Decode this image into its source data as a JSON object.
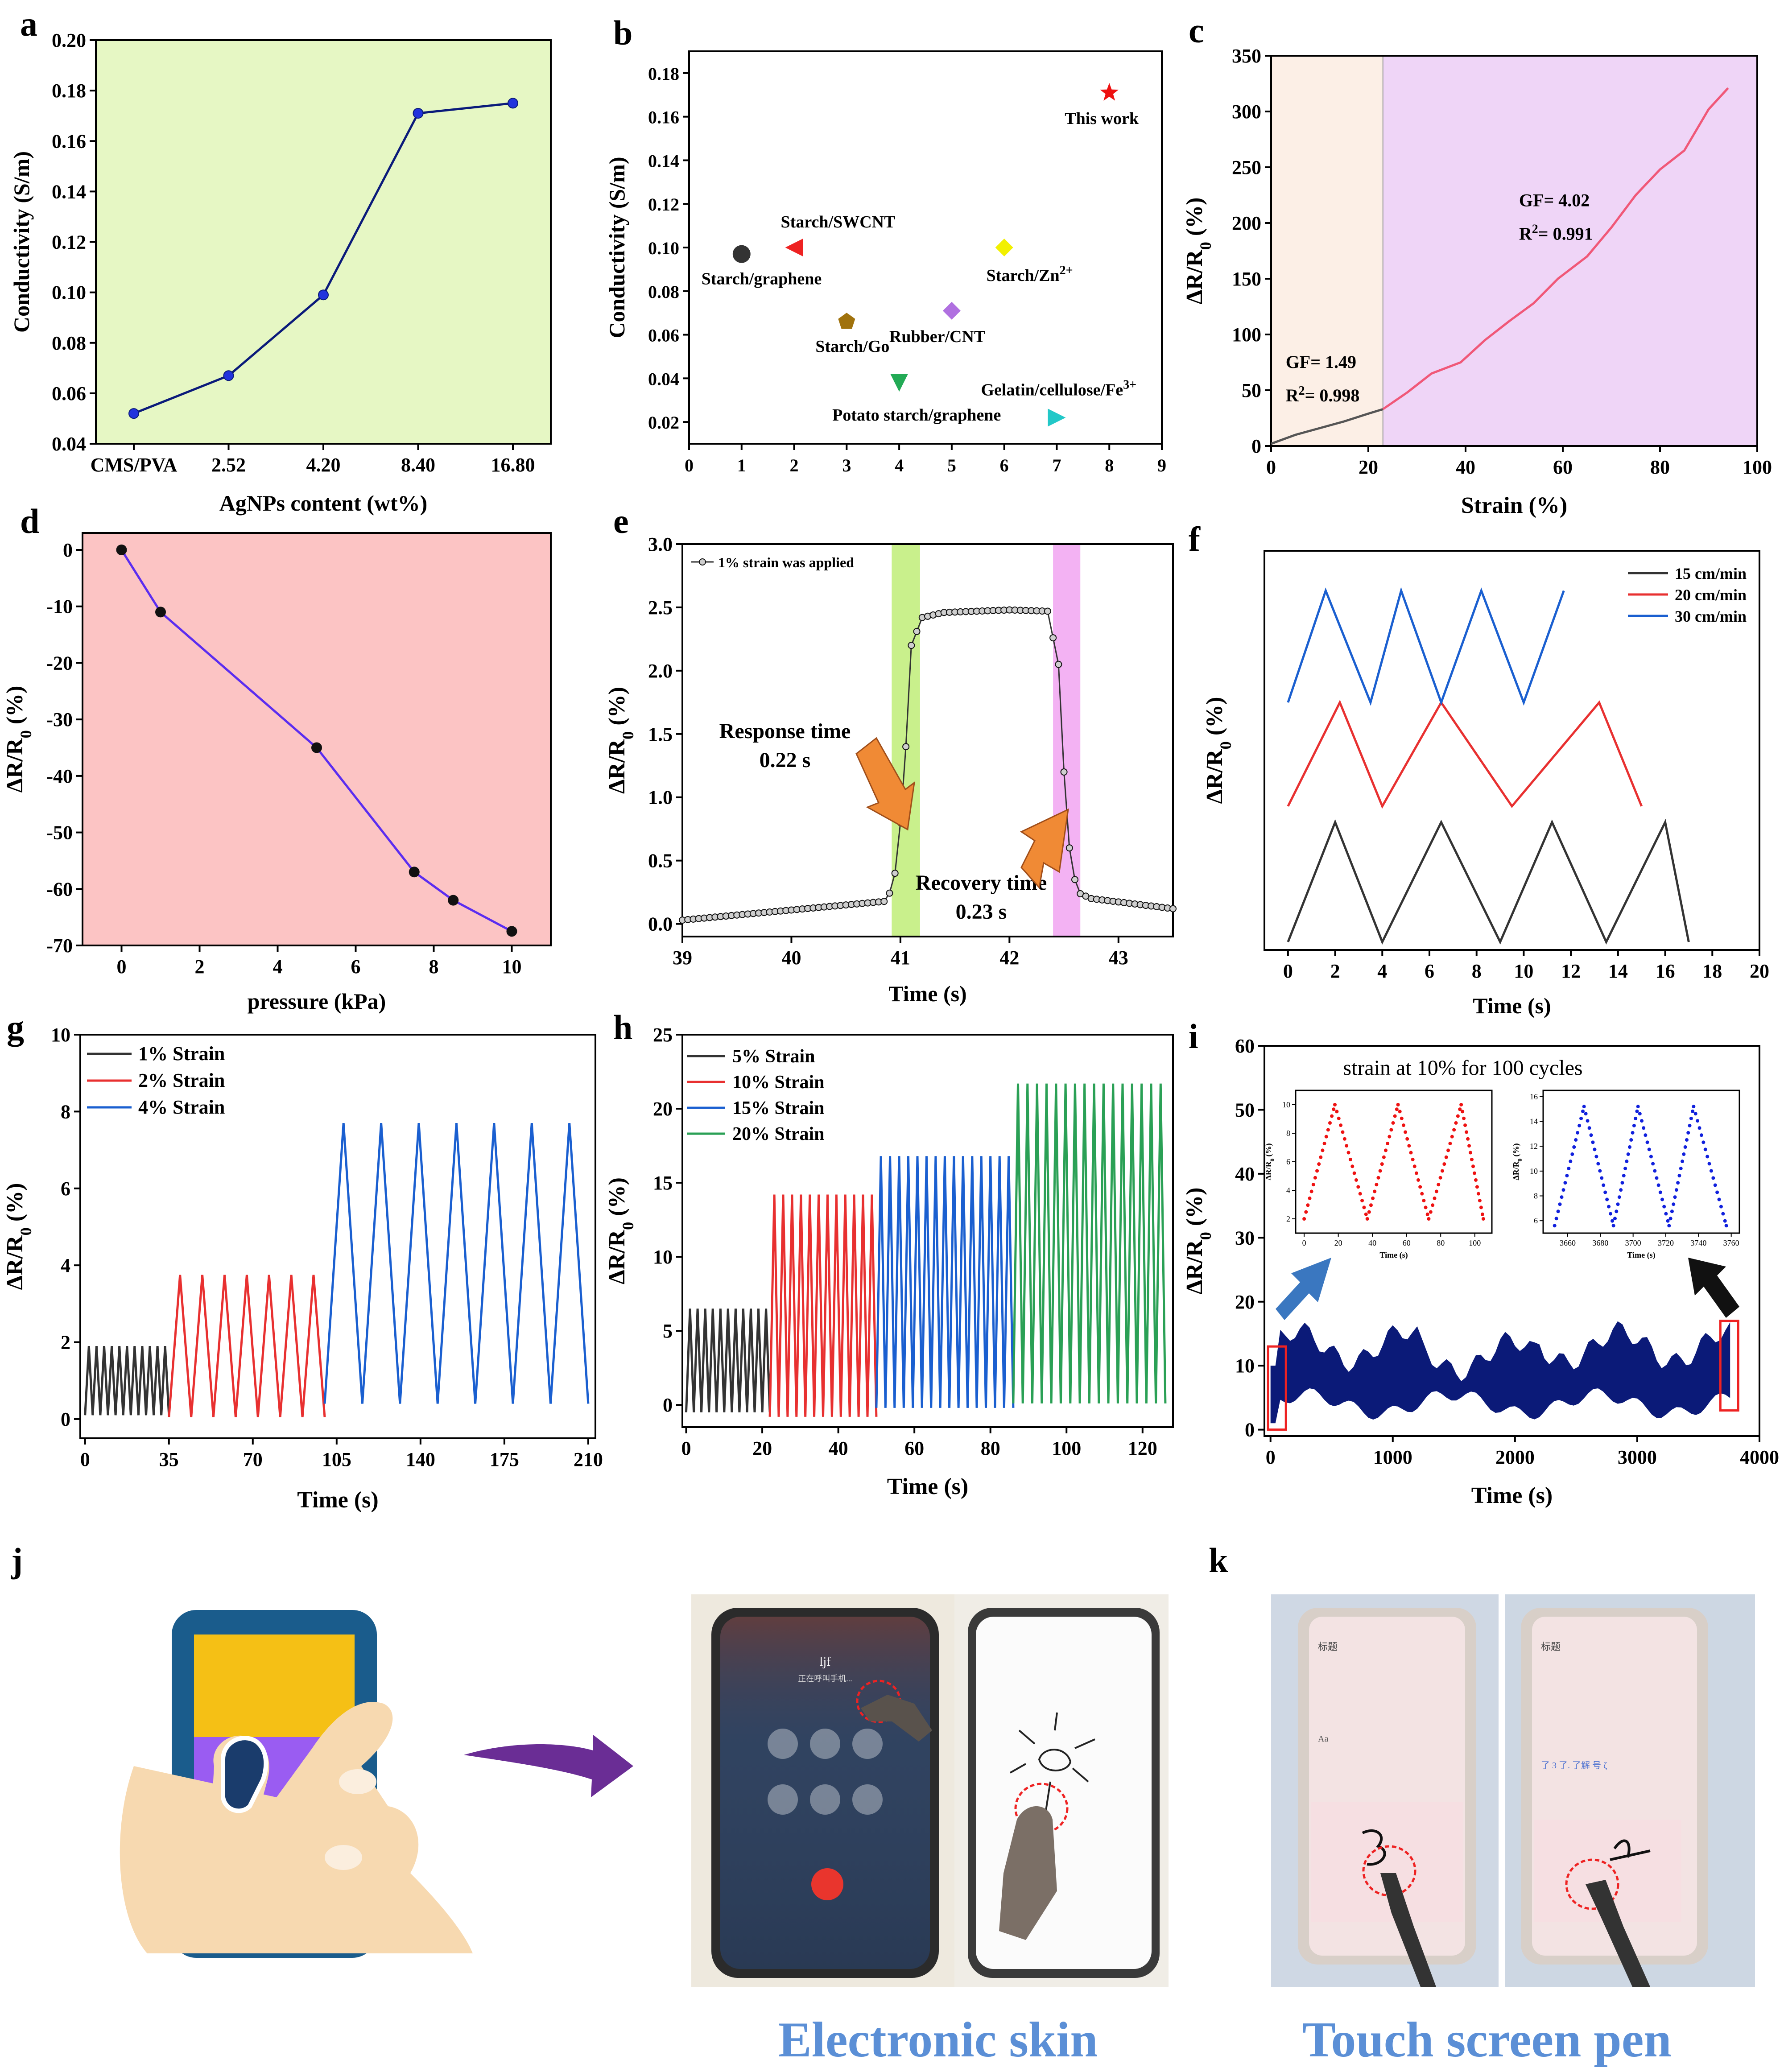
{
  "panels": {
    "a": {
      "letter": "a"
    },
    "b": {
      "letter": "b"
    },
    "c": {
      "letter": "c"
    },
    "d": {
      "letter": "d"
    },
    "e": {
      "letter": "e"
    },
    "f": {
      "letter": "f"
    },
    "g": {
      "letter": "g"
    },
    "h": {
      "letter": "h"
    },
    "i": {
      "letter": "i"
    },
    "j": {
      "letter": "j"
    },
    "k": {
      "letter": "k"
    }
  },
  "captions": {
    "electronic_skin": "Electronic skin",
    "touch_screen_pen": "Touch screen pen"
  },
  "phone_ui": {
    "call_name": "ljf",
    "call_status": "正在呼叫手机...",
    "memo_title": "标题",
    "memo_title_2": "标题",
    "keyboard_candidates_1": "Aa",
    "keyboard_candidates_2": "了  3  了.  了解  号  ζ"
  },
  "chart_data": [
    {
      "id": "a",
      "type": "line",
      "categories": [
        "CMS/PVA",
        "2.52",
        "4.20",
        "8.40",
        "16.80"
      ],
      "values": [
        0.052,
        0.067,
        0.099,
        0.171,
        0.175
      ],
      "xlabel": "AgNPs content (wt%)",
      "ylabel": "Conductivity (S/m)",
      "ylim": [
        0.04,
        0.2
      ],
      "yticks": [
        "0.04",
        "0.06",
        "0.08",
        "0.10",
        "0.12",
        "0.14",
        "0.16",
        "0.18",
        "0.20"
      ],
      "background": "#e6f7c4",
      "line_color": "#0a1a7a",
      "marker_color": "#2233dd"
    },
    {
      "id": "b",
      "type": "scatter",
      "xlim": [
        0,
        9
      ],
      "ylim": [
        0.01,
        0.19
      ],
      "xticks": [
        "0",
        "1",
        "2",
        "3",
        "4",
        "5",
        "6",
        "7",
        "8",
        "9"
      ],
      "yticks": [
        "0.02",
        "0.04",
        "0.06",
        "0.08",
        "0.10",
        "0.12",
        "0.14",
        "0.16",
        "0.18"
      ],
      "ylabel": "Conductivity (S/m)",
      "points": [
        {
          "x": 1,
          "y": 0.097,
          "label": "Starch/graphene",
          "marker": "sphere",
          "color": "#333333"
        },
        {
          "x": 2,
          "y": 0.1,
          "label": "Starch/SWCNT",
          "marker": "triangle-left",
          "color": "#ee2222"
        },
        {
          "x": 3,
          "y": 0.066,
          "label": "Starch/Go",
          "marker": "pentagon",
          "color": "#a0720d"
        },
        {
          "x": 4,
          "y": 0.038,
          "label": "Potato starch/graphene",
          "marker": "triangle-down",
          "color": "#22aa55"
        },
        {
          "x": 5,
          "y": 0.071,
          "label": "Rubber/CNT",
          "marker": "diamond",
          "color": "#b070e0"
        },
        {
          "x": 6,
          "y": 0.1,
          "label": "Starch/Zn",
          "label_sup": "2+",
          "marker": "diamond",
          "color": "#f2f000"
        },
        {
          "x": 7,
          "y": 0.022,
          "label": "Gelatin/cellulose/Fe",
          "label_sup": "3+",
          "marker": "triangle-right",
          "color": "#22c8c8"
        },
        {
          "x": 8,
          "y": 0.171,
          "label": "This work",
          "marker": "star",
          "color": "#ee1111"
        }
      ]
    },
    {
      "id": "c",
      "type": "line",
      "x": [
        0,
        5,
        10,
        15,
        20,
        23,
        28,
        33,
        39,
        44,
        49,
        54,
        59,
        65,
        70,
        75,
        80,
        85,
        90,
        94
      ],
      "y": [
        2,
        10,
        16,
        22,
        29,
        33,
        48,
        65,
        75,
        95,
        112,
        128,
        150,
        170,
        196,
        225,
        248,
        265,
        302,
        321
      ],
      "xlim": [
        0,
        100
      ],
      "ylim": [
        0,
        350
      ],
      "xticks": [
        "0",
        "20",
        "40",
        "60",
        "80",
        "100"
      ],
      "yticks": [
        "0",
        "50",
        "100",
        "150",
        "200",
        "250",
        "300",
        "350"
      ],
      "xlabel": "Strain (%)",
      "ylabel": "ΔR/R0 (%)",
      "regions": [
        {
          "from": 0,
          "to": 23,
          "color": "#fcefe6"
        },
        {
          "from": 23,
          "to": 100,
          "color": "#efd5f7"
        }
      ],
      "annotations": [
        {
          "text": "GF= 1.49",
          "x": 3,
          "y": 70
        },
        {
          "text": "R",
          "sup": "2",
          "rest": "= 0.998",
          "x": 3,
          "y": 40
        },
        {
          "text": "GF= 4.02",
          "x": 51,
          "y": 215
        },
        {
          "text": "R",
          "sup": "2",
          "rest": "= 0.991",
          "x": 51,
          "y": 185
        }
      ],
      "colors": {
        "low": "#555555",
        "high": "#f05878"
      }
    },
    {
      "id": "d",
      "type": "line",
      "x": [
        0,
        1,
        5,
        7.5,
        8.5,
        10
      ],
      "y": [
        0,
        -11,
        -35,
        -57,
        -62,
        -67.5
      ],
      "xlim": [
        -1,
        11
      ],
      "ylim": [
        -70,
        3
      ],
      "xticks": [
        "0",
        "2",
        "4",
        "6",
        "8",
        "10"
      ],
      "yticks": [
        "0",
        "-10",
        "-20",
        "-30",
        "-40",
        "-50",
        "-60",
        "-70"
      ],
      "xlabel": "pressure (kPa)",
      "ylabel": "ΔR/R0 (%)",
      "background": "#fcc4c4",
      "line_color": "#5b2df0"
    },
    {
      "id": "e",
      "type": "line",
      "xlim": [
        39,
        43.5
      ],
      "ylim": [
        -0.1,
        3.0
      ],
      "xticks": [
        "39",
        "40",
        "41",
        "42",
        "43"
      ],
      "yticks": [
        "0.0",
        "0.5",
        "1.0",
        "1.5",
        "2.0",
        "2.5",
        "3.0"
      ],
      "xlabel": "Time (s)",
      "ylabel": "ΔR/R0 (%)",
      "legend": "1% strain was applied",
      "shade_response": [
        40.92,
        41.18
      ],
      "shade_recovery": [
        42.4,
        42.65
      ],
      "shade_colors": {
        "response": "#c9f08c",
        "recovery": "#f3b2f3"
      },
      "key_points": [
        [
          39,
          0.03
        ],
        [
          40.88,
          0.18
        ],
        [
          40.95,
          0.4
        ],
        [
          41.0,
          0.8
        ],
        [
          41.05,
          1.4
        ],
        [
          41.1,
          2.2
        ],
        [
          41.2,
          2.42
        ],
        [
          41.4,
          2.46
        ],
        [
          42.0,
          2.48
        ],
        [
          42.35,
          2.47
        ],
        [
          42.45,
          2.05
        ],
        [
          42.5,
          1.2
        ],
        [
          42.55,
          0.6
        ],
        [
          42.62,
          0.25
        ],
        [
          42.75,
          0.2
        ],
        [
          43.5,
          0.12
        ]
      ],
      "annotations": {
        "response": "Response time",
        "response_value": "0.22 s",
        "recovery": "Recovery time",
        "recovery_value": "0.23 s"
      }
    },
    {
      "id": "f",
      "type": "line",
      "xlim": [
        -1,
        20
      ],
      "xticks": [
        "0",
        "2",
        "4",
        "6",
        "8",
        "10",
        "12",
        "14",
        "16",
        "18",
        "20"
      ],
      "xlabel": "Time (s)",
      "ylabel": "ΔR/R0 (%)",
      "series": [
        {
          "name": "15 cm/min",
          "color": "#333333",
          "x": [
            0,
            2,
            4,
            6.5,
            9,
            11.2,
            13.5,
            16,
            17
          ],
          "peaks_y": 0.32,
          "trough_y": 0.02
        },
        {
          "name": "20 cm/min",
          "color": "#e83030",
          "x": [
            0,
            2.2,
            4,
            6.5,
            9.5,
            13.2,
            15
          ],
          "peaks_y": 0.62,
          "trough_y": 0.36
        },
        {
          "name": "30 cm/min",
          "color": "#1a5fd0",
          "x": [
            0,
            1.6,
            3.5,
            4.8,
            6.5,
            8.2,
            10,
            11.7
          ],
          "peaks_y": 0.9,
          "trough_y": 0.62
        }
      ]
    },
    {
      "id": "g",
      "type": "line",
      "xlim": [
        -2,
        213
      ],
      "ylim": [
        -0.5,
        10
      ],
      "xticks": [
        "0",
        "35",
        "70",
        "105",
        "140",
        "175",
        "210"
      ],
      "yticks": [
        "0",
        "2",
        "4",
        "6",
        "8",
        "10"
      ],
      "xlabel": "Time (s)",
      "ylabel": "ΔR/R0 (%)",
      "series": [
        {
          "name": "1% Strain",
          "color": "#333333",
          "from": 0,
          "to": 35,
          "cycles": 11,
          "peak": 1.9,
          "base": 0.1
        },
        {
          "name": "2% Strain",
          "color": "#e83030",
          "from": 35,
          "to": 100,
          "cycles": 7,
          "peak": 3.75,
          "base": 0.05
        },
        {
          "name": "4% Strain",
          "color": "#1a5fd0",
          "from": 100,
          "to": 210,
          "cycles": 7,
          "peak": 7.7,
          "base": 0.4
        }
      ]
    },
    {
      "id": "h",
      "type": "line",
      "xlim": [
        -1,
        128
      ],
      "ylim": [
        -1.5,
        25
      ],
      "xticks": [
        "0",
        "20",
        "40",
        "60",
        "80",
        "100",
        "120"
      ],
      "yticks": [
        "0",
        "5",
        "10",
        "15",
        "20",
        "25"
      ],
      "xlabel": "Time (s)",
      "ylabel": "ΔR/R0 (%)",
      "series": [
        {
          "name": "5% Strain",
          "color": "#333333",
          "from": 0,
          "to": 22,
          "cycles": 11,
          "peak": 6.5,
          "base": -0.5
        },
        {
          "name": "10% Strain",
          "color": "#e83030",
          "from": 22,
          "to": 50,
          "cycles": 12,
          "peak": 14.2,
          "base": -0.8
        },
        {
          "name": "15% Strain",
          "color": "#1a5fd0",
          "from": 50,
          "to": 86,
          "cycles": 15,
          "peak": 16.8,
          "base": -0.2
        },
        {
          "name": "20% Strain",
          "color": "#2aa055",
          "from": 86,
          "to": 126,
          "cycles": 16,
          "peak": 21.7,
          "base": 0.1
        }
      ]
    },
    {
      "id": "i",
      "type": "area",
      "xlim": [
        -50,
        4000
      ],
      "ylim": [
        -1,
        60
      ],
      "xticks": [
        "0",
        "1000",
        "2000",
        "3000",
        "4000"
      ],
      "yticks": [
        "0",
        "10",
        "20",
        "30",
        "40",
        "50",
        "60"
      ],
      "xlabel": "Time (s)",
      "ylabel": "ΔR/R0 (%)",
      "band_color": "#0b1a78",
      "band_low_range": [
        2,
        6
      ],
      "band_high_range": [
        11,
        16
      ],
      "inset_title": "strain at 10% for 100 cycles",
      "inset_left": {
        "color": "#ee1111",
        "xticks": [
          "0",
          "20",
          "40",
          "60",
          "80",
          "100"
        ],
        "yticks": [
          "2",
          "4",
          "6",
          "8",
          "10"
        ],
        "xlabel": "Time (s)",
        "ylabel": "ΔR/R0 (%)",
        "peaks": [
          18,
          55,
          92
        ],
        "troughs": [
          0,
          37,
          73,
          105
        ],
        "peak_value": 10,
        "trough_value": 2
      },
      "inset_right": {
        "color": "#1020dd",
        "xticks": [
          "3660",
          "3680",
          "3700",
          "3720",
          "3740",
          "3760"
        ],
        "yticks": [
          "6",
          "8",
          "10",
          "12",
          "14",
          "16"
        ],
        "xlabel": "Time (s)",
        "ylabel": "ΔR/R0 (%)",
        "peaks": [
          3670,
          3703,
          3737
        ],
        "troughs": [
          3652,
          3688,
          3722,
          3757
        ],
        "peak_value": 15.2,
        "trough_value": 5.6
      }
    }
  ]
}
